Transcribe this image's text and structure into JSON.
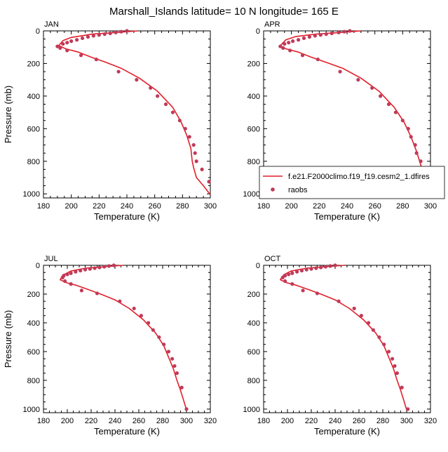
{
  "title": "Marshall_Islands  latitude= 10 N longitude= 165 E",
  "colors": {
    "model": "#e0202a",
    "raobs": "#c03a5a",
    "axis": "#000000"
  },
  "legend": {
    "model_label": "f.e21.F2000climo.f19_f19.cesm2_1.dfires",
    "raobs_label": "raobs"
  },
  "chart_data": [
    {
      "type": "line",
      "panel": "JAN",
      "xlabel": "Temperature (K)",
      "ylabel": "Pressure (mb)",
      "xlim": [
        180,
        300
      ],
      "ylim": [
        1025,
        0
      ],
      "xticks": [
        180,
        200,
        220,
        240,
        260,
        280,
        300
      ],
      "yticks": [
        0,
        200,
        400,
        600,
        800,
        1000
      ],
      "series": [
        {
          "name": "f.e21.F2000climo.f19_f19.cesm2_1.dfires",
          "kind": "line",
          "x": [
            248,
            232,
            215,
            200,
            194,
            191,
            196,
            205,
            214,
            224,
            236,
            249,
            262,
            273,
            279,
            283,
            286,
            287,
            288,
            290,
            295,
            300
          ],
          "y": [
            0,
            10,
            20,
            40,
            60,
            90,
            110,
            130,
            160,
            190,
            230,
            290,
            370,
            470,
            560,
            640,
            720,
            800,
            840,
            900,
            950,
            1005
          ]
        },
        {
          "name": "raobs",
          "kind": "scatter",
          "x": [
            240,
            236,
            232,
            228,
            224,
            220,
            216,
            212,
            208,
            204,
            200,
            197,
            194,
            190,
            192,
            197,
            207,
            218,
            234,
            247,
            257,
            262,
            268,
            273,
            278,
            282,
            285,
            288,
            289,
            290,
            294,
            299
          ],
          "y": [
            0,
            5,
            10,
            15,
            20,
            25,
            30,
            37,
            45,
            55,
            63,
            72,
            80,
            95,
            105,
            120,
            150,
            175,
            250,
            300,
            350,
            400,
            450,
            500,
            550,
            600,
            650,
            700,
            750,
            800,
            850,
            925
          ]
        }
      ]
    },
    {
      "type": "line",
      "panel": "APR",
      "xlabel": "Temperature (K)",
      "ylabel": "",
      "xlim": [
        180,
        300
      ],
      "ylim": [
        1025,
        0
      ],
      "xticks": [
        180,
        200,
        220,
        240,
        260,
        280,
        300
      ],
      "yticks": [
        0,
        200,
        400,
        600,
        800,
        1000
      ],
      "series": [
        {
          "name": "f.e21.F2000climo.f19_f19.cesm2_1.dfires",
          "kind": "line",
          "x": [
            250,
            235,
            218,
            203,
            196,
            192,
            196,
            205,
            214,
            224,
            237,
            250,
            263,
            274,
            281,
            286,
            290,
            294,
            297,
            300
          ],
          "y": [
            0,
            10,
            20,
            35,
            55,
            90,
            110,
            130,
            160,
            190,
            230,
            290,
            370,
            470,
            560,
            650,
            740,
            850,
            930,
            1005
          ]
        },
        {
          "name": "raobs",
          "kind": "scatter",
          "x": [
            242,
            238,
            234,
            229,
            225,
            221,
            217,
            213,
            209,
            205,
            201,
            198,
            195,
            192,
            194,
            199,
            208,
            219,
            235,
            248,
            258,
            264,
            270,
            275,
            280,
            284,
            286,
            289,
            290,
            293,
            297,
            300
          ],
          "y": [
            0,
            5,
            10,
            15,
            20,
            25,
            30,
            37,
            45,
            55,
            63,
            72,
            80,
            95,
            105,
            120,
            150,
            175,
            250,
            300,
            350,
            400,
            450,
            500,
            550,
            600,
            650,
            700,
            750,
            800,
            850,
            925
          ]
        }
      ]
    },
    {
      "type": "line",
      "panel": "JUL",
      "xlabel": "Temperature (K)",
      "ylabel": "Pressure (mb)",
      "xlim": [
        180,
        320
      ],
      "ylim": [
        1025,
        0
      ],
      "xticks": [
        180,
        200,
        220,
        240,
        260,
        280,
        300,
        320
      ],
      "yticks": [
        0,
        200,
        400,
        600,
        800,
        1000
      ],
      "series": [
        {
          "name": "f.e21.F2000climo.f19_f19.cesm2_1.dfires",
          "kind": "line",
          "x": [
            247,
            232,
            215,
            203,
            197,
            194,
            199,
            208,
            218,
            228,
            240,
            252,
            264,
            274,
            281,
            285,
            289,
            292,
            295,
            298,
            300
          ],
          "y": [
            0,
            10,
            20,
            40,
            65,
            100,
            120,
            140,
            170,
            200,
            240,
            300,
            380,
            470,
            560,
            640,
            720,
            800,
            870,
            950,
            1005
          ]
        },
        {
          "name": "raobs",
          "kind": "scatter",
          "x": [
            239,
            235,
            231,
            227,
            223,
            219,
            215,
            211,
            207,
            203,
            200,
            197,
            196,
            198,
            203,
            212,
            225,
            244,
            256,
            262,
            268,
            272,
            277,
            281,
            285,
            288,
            290,
            292,
            296,
            300
          ],
          "y": [
            0,
            5,
            10,
            15,
            20,
            25,
            30,
            37,
            45,
            55,
            63,
            72,
            85,
            110,
            130,
            175,
            195,
            250,
            300,
            350,
            400,
            450,
            500,
            550,
            600,
            650,
            700,
            750,
            850,
            1000
          ]
        }
      ]
    },
    {
      "type": "line",
      "panel": "OCT",
      "xlabel": "Temperature (K)",
      "ylabel": "",
      "xlim": [
        180,
        320
      ],
      "ylim": [
        1025,
        0
      ],
      "xticks": [
        180,
        200,
        220,
        240,
        260,
        280,
        300,
        320
      ],
      "yticks": [
        0,
        200,
        400,
        600,
        800,
        1000
      ],
      "series": [
        {
          "name": "f.e21.F2000climo.f19_f19.cesm2_1.dfires",
          "kind": "line",
          "x": [
            248,
            232,
            216,
            203,
            197,
            194,
            199,
            208,
            218,
            228,
            240,
            252,
            264,
            274,
            281,
            285,
            289,
            292,
            295,
            298,
            300
          ],
          "y": [
            0,
            10,
            20,
            40,
            65,
            100,
            120,
            140,
            170,
            200,
            240,
            300,
            380,
            470,
            560,
            640,
            720,
            800,
            870,
            950,
            1005
          ]
        },
        {
          "name": "raobs",
          "kind": "scatter",
          "x": [
            240,
            236,
            232,
            228,
            224,
            220,
            216,
            212,
            208,
            204,
            201,
            198,
            196,
            198,
            204,
            213,
            225,
            243,
            256,
            262,
            268,
            272,
            277,
            281,
            285,
            288,
            290,
            292,
            296,
            301
          ],
          "y": [
            0,
            5,
            10,
            15,
            20,
            25,
            30,
            37,
            45,
            55,
            63,
            72,
            85,
            110,
            130,
            175,
            195,
            250,
            300,
            350,
            400,
            450,
            500,
            550,
            600,
            650,
            700,
            750,
            850,
            1000
          ]
        }
      ]
    }
  ]
}
